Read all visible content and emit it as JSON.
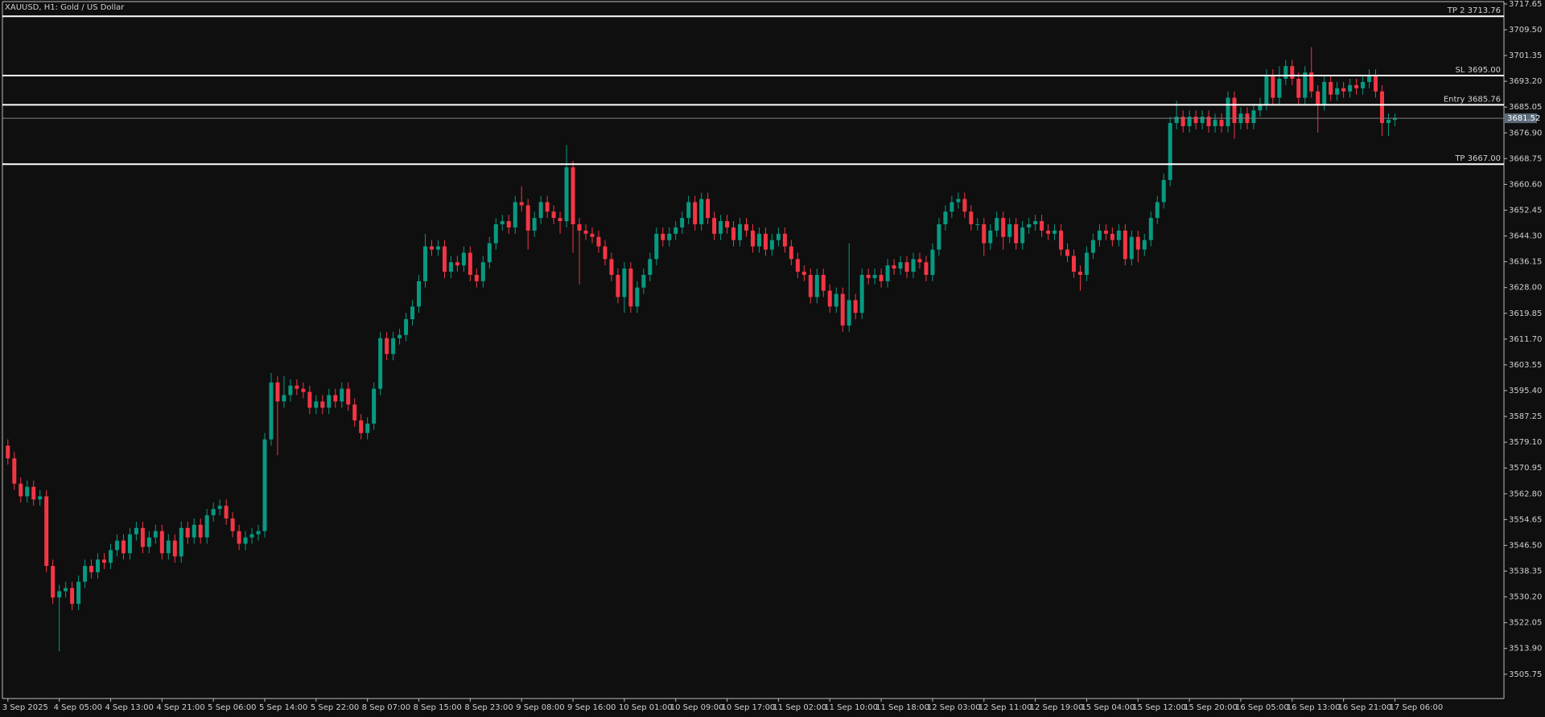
{
  "chart_data": {
    "type": "candlestick",
    "title": "XAUUSD, H1:  Gold / US Dollar",
    "background": "#0f0f0f",
    "up_color": "#089981",
    "down_color": "#f23645",
    "level_color": "#ffffff",
    "current_color": "#808080",
    "ylim": [
      3498.08,
      3718.39
    ],
    "yticks": [
      3717.65,
      {
        "value": 3709.5,
        "label": "3709.50"
      },
      3701.35,
      {
        "value": 3693.2,
        "label": "3693.20"
      },
      3685.05,
      {
        "value": 3676.9,
        "label": "3676.90"
      },
      3668.75,
      {
        "value": 3660.6,
        "label": "3660.60"
      },
      3652.45,
      {
        "value": 3644.3,
        "label": "3644.30"
      },
      3636.15,
      {
        "value": 3628,
        "label": "3628.00"
      },
      3619.85,
      {
        "value": 3611.7,
        "label": "3611.70"
      },
      3603.55,
      {
        "value": 3595.4,
        "label": "3595.40"
      },
      3587.25,
      {
        "value": 3579.1,
        "label": "3579.10"
      },
      3570.95,
      {
        "value": 3562.8,
        "label": "3562.80"
      },
      3554.65,
      {
        "value": 3546.5,
        "label": "3546.50"
      },
      3538.35,
      {
        "value": 3530.2,
        "label": "3530.20"
      },
      3522.05,
      {
        "value": 3513.9,
        "label": "3513.90"
      },
      3505.75
    ],
    "levels": [
      {
        "label": "TP 2 3713.76",
        "value": 3713.76
      },
      {
        "label": "SL 3695.00",
        "value": 3695
      },
      {
        "label": "Entry 3685.76",
        "value": 3685.76
      },
      {
        "label": "TP 3667.00",
        "value": 3667
      }
    ],
    "current_price": 3681.52,
    "categories": [
      "3 Sep 2025",
      null,
      null,
      null,
      null,
      null,
      null,
      null,
      "4 Sep 05:00",
      null,
      null,
      null,
      null,
      null,
      null,
      null,
      "4 Sep 13:00",
      null,
      null,
      null,
      null,
      null,
      null,
      null,
      "4 Sep 21:00",
      null,
      null,
      null,
      null,
      null,
      null,
      null,
      "5 Sep 06:00",
      null,
      null,
      null,
      null,
      null,
      null,
      null,
      "5 Sep 14:00",
      null,
      null,
      null,
      null,
      null,
      null,
      null,
      "5 Sep 22:00",
      null,
      null,
      null,
      null,
      null,
      null,
      null,
      "8 Sep 07:00",
      null,
      null,
      null,
      null,
      null,
      null,
      null,
      "8 Sep 15:00",
      null,
      null,
      null,
      null,
      null,
      null,
      null,
      "8 Sep 23:00",
      null,
      null,
      null,
      null,
      null,
      null,
      null,
      "9 Sep 08:00",
      null,
      null,
      null,
      null,
      null,
      null,
      null,
      "9 Sep 16:00",
      null,
      null,
      null,
      null,
      null,
      null,
      null,
      "10 Sep 01:00",
      null,
      null,
      null,
      null,
      null,
      null,
      null,
      "10 Sep 09:00",
      null,
      null,
      null,
      null,
      null,
      null,
      null,
      "10 Sep 17:00",
      null,
      null,
      null,
      null,
      null,
      null,
      null,
      "11 Sep 02:00",
      null,
      null,
      null,
      null,
      null,
      null,
      null,
      "11 Sep 10:00",
      null,
      null,
      null,
      null,
      null,
      null,
      null,
      "11 Sep 18:00",
      null,
      null,
      null,
      null,
      null,
      null,
      null,
      "12 Sep 03:00",
      null,
      null,
      null,
      null,
      null,
      null,
      null,
      "12 Sep 11:00",
      null,
      null,
      null,
      null,
      null,
      null,
      null,
      "12 Sep 19:00",
      null,
      null,
      null,
      null,
      null,
      null,
      null,
      "15 Sep 04:00",
      null,
      null,
      null,
      null,
      null,
      null,
      null,
      "15 Sep 12:00",
      null,
      null,
      null,
      null,
      null,
      null,
      null,
      "15 Sep 20:00",
      null,
      null,
      null,
      null,
      null,
      null,
      null,
      "16 Sep 05:00",
      null,
      null,
      null,
      null,
      null,
      null,
      null,
      "16 Sep 13:00",
      null,
      null,
      null,
      null,
      null,
      null,
      null,
      "16 Sep 21:00",
      null,
      null,
      null,
      null,
      null,
      null,
      null,
      "17 Sep 06:00"
    ],
    "open": [
      3578,
      3574,
      3566,
      3562,
      3565,
      3561,
      3562,
      3540,
      3530,
      3532,
      3533,
      3528,
      3535,
      3540,
      3538,
      3542,
      3541,
      3545,
      3548,
      3544,
      3550,
      3552,
      3546,
      3549,
      3551,
      3544,
      3548,
      3543,
      3552,
      3549,
      3553,
      3549,
      3556,
      3558,
      3559,
      3555,
      3551,
      3547,
      3549,
      3550,
      3551,
      3580,
      3598,
      3592,
      3594,
      3597,
      3596,
      3595,
      3590,
      3592,
      3590,
      3594,
      3592,
      3596,
      3591,
      3586,
      3582,
      3585,
      3596,
      3612,
      3607,
      3612,
      3613,
      3618,
      3622,
      3630,
      3641,
      3640,
      3641,
      3633,
      3636,
      3635,
      3639,
      3632,
      3630,
      3636,
      3642,
      3648,
      3649,
      3647,
      3655,
      3654,
      3646,
      3650,
      3655,
      3652,
      3650,
      3649,
      3666,
      3648,
      3646,
      3645,
      3644,
      3641,
      3637,
      3632,
      3625,
      3634,
      3622,
      3628,
      3632,
      3637,
      3645,
      3643,
      3645,
      3647,
      3650,
      3655,
      3648,
      3656,
      3650,
      3645,
      3649,
      3647,
      3643,
      3648,
      3646,
      3641,
      3645,
      3640,
      3643,
      3645,
      3641,
      3637,
      3633,
      3632,
      3625,
      3632,
      3627,
      3622,
      3626,
      3616,
      3624,
      3620,
      3632,
      3631,
      3632,
      3630,
      3635,
      3634,
      3636,
      3633,
      3637,
      3636,
      3632,
      3640,
      3648,
      3652,
      3655,
      3656,
      3652,
      3648,
      3648,
      3642,
      3646,
      3650,
      3644,
      3648,
      3642,
      3647,
      3648,
      3649,
      3646,
      3645,
      3646,
      3640,
      3638,
      3633,
      3632,
      3639,
      3643,
      3646,
      3645,
      3643,
      3646,
      3637,
      3644,
      3640,
      3643,
      3650,
      3655,
      3662,
      3680,
      3682,
      3679,
      3682,
      3680,
      3682,
      3679,
      3681,
      3679,
      3688,
      3680,
      3683,
      3680,
      3684,
      3686,
      3695,
      3688,
      3694,
      3698,
      3694,
      3688,
      3696,
      3690,
      3686,
      3693,
      3689,
      3691,
      3690,
      3692,
      3691,
      3693,
      3695,
      3690,
      3680,
      3681
    ],
    "high": [
      3580,
      3576,
      3568,
      3567,
      3567,
      3564,
      3564,
      3542,
      3534,
      3535,
      3535,
      3537,
      3542,
      3542,
      3544,
      3544,
      3547,
      3550,
      3550,
      3552,
      3554,
      3554,
      3551,
      3553,
      3553,
      3550,
      3550,
      3554,
      3554,
      3555,
      3555,
      3558,
      3560,
      3561,
      3561,
      3557,
      3553,
      3551,
      3552,
      3553,
      3582,
      3601,
      3600,
      3600,
      3599,
      3599,
      3598,
      3597,
      3594,
      3594,
      3596,
      3596,
      3598,
      3598,
      3593,
      3588,
      3587,
      3598,
      3614,
      3614,
      3614,
      3615,
      3620,
      3624,
      3632,
      3645,
      3643,
      3643,
      3643,
      3638,
      3638,
      3641,
      3641,
      3634,
      3638,
      3644,
      3650,
      3651,
      3651,
      3657,
      3660,
      3656,
      3652,
      3657,
      3657,
      3654,
      3652,
      3673,
      3668,
      3650,
      3648,
      3647,
      3646,
      3643,
      3639,
      3634,
      3636,
      3636,
      3630,
      3634,
      3639,
      3647,
      3647,
      3647,
      3649,
      3652,
      3657,
      3657,
      3658,
      3658,
      3652,
      3651,
      3651,
      3649,
      3650,
      3650,
      3648,
      3647,
      3647,
      3645,
      3647,
      3647,
      3643,
      3639,
      3635,
      3634,
      3634,
      3634,
      3629,
      3628,
      3628,
      3642,
      3626,
      3634,
      3634,
      3634,
      3634,
      3637,
      3637,
      3638,
      3638,
      3639,
      3639,
      3638,
      3642,
      3650,
      3654,
      3657,
      3658,
      3658,
      3654,
      3650,
      3650,
      3648,
      3652,
      3652,
      3650,
      3650,
      3649,
      3650,
      3651,
      3651,
      3648,
      3648,
      3648,
      3642,
      3640,
      3635,
      3641,
      3645,
      3648,
      3648,
      3647,
      3648,
      3648,
      3646,
      3646,
      3645,
      3652,
      3657,
      3664,
      3682,
      3687,
      3684,
      3684,
      3684,
      3684,
      3684,
      3683,
      3683,
      3690,
      3690,
      3685,
      3685,
      3686,
      3688,
      3697,
      3697,
      3698,
      3700,
      3700,
      3696,
      3698,
      3704,
      3692,
      3695,
      3695,
      3693,
      3693,
      3694,
      3694,
      3695,
      3697,
      3697,
      3692,
      3683,
      3683
    ],
    "low": [
      3572,
      3564,
      3560,
      3560,
      3559,
      3559,
      3538,
      3528,
      3513,
      3530,
      3526,
      3526,
      3533,
      3536,
      3536,
      3539,
      3539,
      3543,
      3542,
      3542,
      3548,
      3544,
      3544,
      3547,
      3542,
      3542,
      3541,
      3541,
      3547,
      3547,
      3547,
      3547,
      3554,
      3556,
      3553,
      3549,
      3545,
      3545,
      3547,
      3548,
      3549,
      3578,
      3575,
      3590,
      3592,
      3594,
      3593,
      3588,
      3588,
      3588,
      3588,
      3590,
      3590,
      3589,
      3584,
      3580,
      3580,
      3583,
      3594,
      3605,
      3605,
      3610,
      3611,
      3616,
      3620,
      3628,
      3638,
      3638,
      3631,
      3631,
      3633,
      3633,
      3630,
      3628,
      3628,
      3634,
      3640,
      3646,
      3645,
      3645,
      3652,
      3640,
      3644,
      3648,
      3650,
      3648,
      3645,
      3647,
      3639,
      3629,
      3643,
      3642,
      3639,
      3635,
      3630,
      3623,
      3620,
      3620,
      3620,
      3626,
      3630,
      3635,
      3641,
      3641,
      3643,
      3645,
      3648,
      3646,
      3646,
      3648,
      3643,
      3643,
      3645,
      3641,
      3641,
      3644,
      3639,
      3639,
      3638,
      3638,
      3641,
      3639,
      3635,
      3631,
      3630,
      3623,
      3623,
      3625,
      3620,
      3620,
      3614,
      3614,
      3618,
      3618,
      3629,
      3629,
      3628,
      3628,
      3632,
      3632,
      3631,
      3631,
      3634,
      3630,
      3630,
      3638,
      3646,
      3650,
      3653,
      3650,
      3646,
      3646,
      3638,
      3640,
      3644,
      3640,
      3642,
      3640,
      3640,
      3645,
      3646,
      3644,
      3643,
      3643,
      3638,
      3636,
      3631,
      3627,
      3630,
      3637,
      3641,
      3643,
      3641,
      3641,
      3635,
      3635,
      3636,
      3638,
      3641,
      3648,
      3653,
      3660,
      3678,
      3677,
      3677,
      3678,
      3678,
      3677,
      3677,
      3677,
      3677,
      3675,
      3678,
      3678,
      3678,
      3682,
      3684,
      3686,
      3686,
      3692,
      3692,
      3686,
      3686,
      3688,
      3677,
      3684,
      3687,
      3687,
      3688,
      3688,
      3689,
      3689,
      3691,
      3688,
      3676,
      3676,
      3679
    ],
    "close": [
      3574,
      3566,
      3562,
      3565,
      3561,
      3562,
      3540,
      3530,
      3532,
      3533,
      3528,
      3535,
      3540,
      3538,
      3542,
      3541,
      3545,
      3548,
      3544,
      3550,
      3552,
      3546,
      3549,
      3551,
      3544,
      3548,
      3543,
      3552,
      3549,
      3553,
      3549,
      3556,
      3558,
      3559,
      3555,
      3551,
      3547,
      3549,
      3550,
      3551,
      3580,
      3598,
      3592,
      3594,
      3597,
      3596,
      3595,
      3590,
      3592,
      3590,
      3594,
      3592,
      3596,
      3591,
      3586,
      3582,
      3585,
      3596,
      3612,
      3607,
      3612,
      3613,
      3618,
      3622,
      3630,
      3641,
      3640,
      3641,
      3633,
      3636,
      3635,
      3639,
      3632,
      3630,
      3636,
      3642,
      3648,
      3649,
      3647,
      3655,
      3654,
      3646,
      3650,
      3655,
      3652,
      3650,
      3649,
      3666,
      3648,
      3646,
      3645,
      3644,
      3641,
      3637,
      3632,
      3625,
      3634,
      3622,
      3628,
      3632,
      3637,
      3645,
      3643,
      3645,
      3647,
      3650,
      3655,
      3648,
      3656,
      3650,
      3645,
      3649,
      3647,
      3643,
      3648,
      3646,
      3641,
      3645,
      3640,
      3643,
      3645,
      3641,
      3637,
      3633,
      3632,
      3625,
      3632,
      3627,
      3622,
      3626,
      3616,
      3624,
      3620,
      3632,
      3631,
      3632,
      3630,
      3635,
      3634,
      3636,
      3633,
      3637,
      3636,
      3632,
      3640,
      3648,
      3652,
      3655,
      3656,
      3652,
      3648,
      3648,
      3642,
      3646,
      3650,
      3644,
      3648,
      3642,
      3647,
      3648,
      3649,
      3646,
      3645,
      3646,
      3640,
      3638,
      3633,
      3632,
      3639,
      3643,
      3646,
      3645,
      3643,
      3646,
      3637,
      3644,
      3640,
      3643,
      3650,
      3655,
      3662,
      3680,
      3682,
      3679,
      3682,
      3680,
      3682,
      3679,
      3681,
      3679,
      3688,
      3680,
      3683,
      3680,
      3684,
      3686,
      3695,
      3688,
      3694,
      3698,
      3694,
      3688,
      3696,
      3690,
      3686,
      3693,
      3689,
      3691,
      3690,
      3692,
      3691,
      3693,
      3695,
      3690,
      3680,
      3681,
      3681.5
    ]
  }
}
